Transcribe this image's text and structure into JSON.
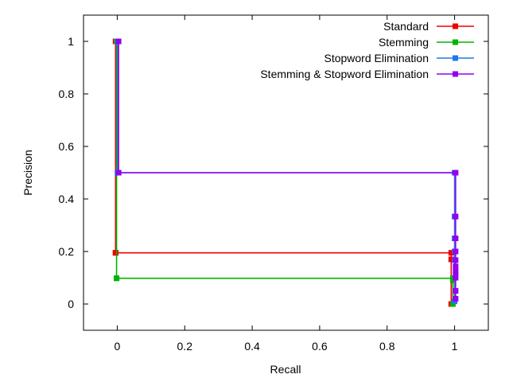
{
  "chart_data": {
    "type": "line",
    "title": "",
    "xlabel": "Recall",
    "ylabel": "Precision",
    "xlim": [
      -0.1,
      1.1
    ],
    "ylim": [
      -0.1,
      1.1
    ],
    "xticks": [
      "0",
      "0.2",
      "0.4",
      "0.6",
      "0.8",
      "1"
    ],
    "yticks": [
      "0",
      "0.2",
      "0.4",
      "0.6",
      "0.8",
      "1"
    ],
    "grid": false,
    "legend_position": "top-right",
    "series": [
      {
        "name": "Standard",
        "color": "#ee0000",
        "marker": "square",
        "x": [
          -0.005,
          -0.005,
          -0.005,
          0.99,
          0.99,
          0.99
        ],
        "y": [
          1.0,
          0.195,
          0.195,
          0.195,
          0.17,
          0.0
        ]
      },
      {
        "name": "Stemming",
        "color": "#00b400",
        "marker": "square",
        "x": [
          -0.002,
          -0.002,
          -0.002,
          0.995,
          0.995,
          0.995
        ],
        "y": [
          1.0,
          0.098,
          0.098,
          0.098,
          0.09,
          0.0
        ]
      },
      {
        "name": "Stopword Elimination",
        "color": "#1e78e6",
        "marker": "square",
        "x": [
          0.001,
          0.001,
          0.001,
          1.0,
          1.0,
          1.0,
          1.0,
          1.0,
          1.0
        ],
        "y": [
          1.0,
          0.5,
          0.5,
          0.5,
          0.333,
          0.25,
          0.2,
          0.167,
          0.01
        ]
      },
      {
        "name": "Stemming & Stopword Elimination",
        "color": "#9400f0",
        "marker": "square",
        "x": [
          0.004,
          0.004,
          0.004,
          1.003,
          1.003,
          1.003,
          1.003,
          1.003,
          1.003,
          1.003,
          1.003,
          1.003,
          1.003,
          1.003
        ],
        "y": [
          1.0,
          0.5,
          0.5,
          0.5,
          0.333,
          0.25,
          0.2,
          0.167,
          0.143,
          0.125,
          0.111,
          0.1,
          0.05,
          0.02
        ]
      }
    ]
  }
}
